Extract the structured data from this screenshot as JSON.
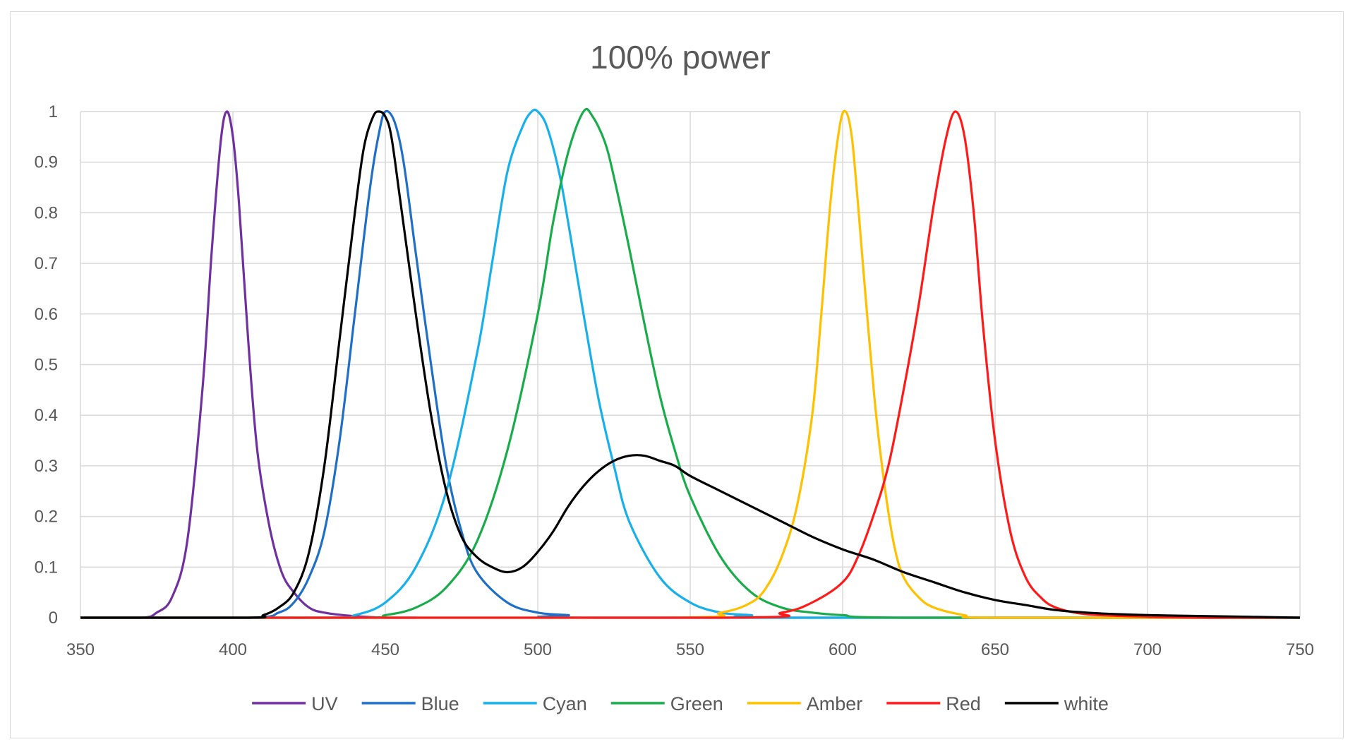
{
  "chart_data": {
    "type": "line",
    "title": "100% power",
    "xlabel": "",
    "ylabel": "",
    "xlim": [
      350,
      750
    ],
    "ylim": [
      0,
      1
    ],
    "x_ticks": [
      "350",
      "400",
      "450",
      "500",
      "550",
      "600",
      "650",
      "700",
      "750"
    ],
    "y_ticks": [
      "0",
      "0.1",
      "0.2",
      "0.3",
      "0.4",
      "0.5",
      "0.6",
      "0.7",
      "0.8",
      "0.9",
      "1"
    ],
    "grid": true,
    "legend_position": "bottom",
    "series": [
      {
        "name": "UV",
        "color": "#7030a0",
        "x": [
          350,
          370,
          375,
          380,
          385,
          390,
          393,
          396,
          398,
          400,
          402,
          405,
          408,
          412,
          416,
          420,
          425,
          430,
          440,
          450,
          460
        ],
        "y": [
          0,
          0,
          0.01,
          0.04,
          0.15,
          0.45,
          0.72,
          0.94,
          1.0,
          0.95,
          0.82,
          0.55,
          0.33,
          0.18,
          0.09,
          0.05,
          0.02,
          0.01,
          0.003,
          0,
          0
        ]
      },
      {
        "name": "Blue",
        "color": "#1f6fc6",
        "x": [
          350,
          405,
          415,
          420,
          425,
          430,
          435,
          440,
          445,
          448,
          450,
          453,
          456,
          460,
          465,
          470,
          475,
          480,
          490,
          500,
          510,
          520,
          750
        ],
        "y": [
          0,
          0,
          0.01,
          0.03,
          0.08,
          0.17,
          0.35,
          0.6,
          0.85,
          0.96,
          1.0,
          0.98,
          0.9,
          0.72,
          0.5,
          0.3,
          0.17,
          0.09,
          0.03,
          0.01,
          0.005,
          0,
          0
        ]
      },
      {
        "name": "Cyan",
        "color": "#17b0ea",
        "x": [
          350,
          430,
          440,
          450,
          460,
          470,
          480,
          485,
          490,
          495,
          498,
          500,
          503,
          507,
          510,
          515,
          520,
          525,
          530,
          540,
          550,
          560,
          570,
          580,
          750
        ],
        "y": [
          0,
          0,
          0.005,
          0.03,
          0.1,
          0.25,
          0.52,
          0.7,
          0.88,
          0.97,
          1.0,
          1.0,
          0.97,
          0.88,
          0.78,
          0.6,
          0.43,
          0.3,
          0.19,
          0.08,
          0.03,
          0.01,
          0.005,
          0,
          0
        ]
      },
      {
        "name": "Green",
        "color": "#1aab4b",
        "x": [
          350,
          440,
          450,
          460,
          470,
          480,
          490,
          500,
          505,
          510,
          515,
          518,
          522,
          525,
          530,
          535,
          540,
          545,
          550,
          560,
          570,
          580,
          590,
          600,
          620,
          750
        ],
        "y": [
          0,
          0,
          0.005,
          0.02,
          0.06,
          0.15,
          0.33,
          0.6,
          0.78,
          0.92,
          1.0,
          0.99,
          0.94,
          0.87,
          0.73,
          0.58,
          0.44,
          0.33,
          0.24,
          0.12,
          0.05,
          0.02,
          0.01,
          0.005,
          0,
          0
        ]
      },
      {
        "name": "Amber",
        "color": "#ffc000",
        "x": [
          350,
          540,
          560,
          570,
          575,
          580,
          585,
          590,
          593,
          596,
          599,
          601,
          603,
          605,
          608,
          611,
          614,
          617,
          620,
          625,
          630,
          640,
          650,
          750
        ],
        "y": [
          0,
          0,
          0.01,
          0.03,
          0.06,
          0.12,
          0.22,
          0.4,
          0.6,
          0.82,
          0.97,
          1.0,
          0.95,
          0.82,
          0.6,
          0.4,
          0.25,
          0.14,
          0.08,
          0.04,
          0.02,
          0.005,
          0,
          0
        ]
      },
      {
        "name": "Red",
        "color": "#ff1a1a",
        "x": [
          350,
          560,
          580,
          590,
          600,
          605,
          610,
          615,
          620,
          625,
          630,
          634,
          637,
          640,
          643,
          646,
          650,
          655,
          660,
          665,
          670,
          680,
          700,
          720,
          750
        ],
        "y": [
          0,
          0,
          0.01,
          0.03,
          0.07,
          0.12,
          0.2,
          0.3,
          0.45,
          0.62,
          0.82,
          0.95,
          1.0,
          0.95,
          0.8,
          0.58,
          0.35,
          0.17,
          0.08,
          0.04,
          0.02,
          0.007,
          0.002,
          0,
          0
        ]
      },
      {
        "name": "white",
        "color": "#000000",
        "x": [
          350,
          405,
          410,
          415,
          420,
          425,
          430,
          435,
          440,
          443,
          446,
          448,
          450,
          452,
          455,
          460,
          465,
          470,
          475,
          480,
          485,
          490,
          495,
          500,
          505,
          510,
          515,
          520,
          525,
          530,
          535,
          540,
          545,
          550,
          560,
          570,
          580,
          590,
          600,
          610,
          620,
          630,
          640,
          650,
          660,
          670,
          680,
          690,
          700,
          720,
          750
        ],
        "y": [
          0,
          0,
          0.005,
          0.02,
          0.05,
          0.13,
          0.3,
          0.55,
          0.8,
          0.93,
          0.99,
          1.0,
          0.99,
          0.95,
          0.82,
          0.6,
          0.4,
          0.25,
          0.16,
          0.12,
          0.1,
          0.09,
          0.1,
          0.13,
          0.17,
          0.22,
          0.26,
          0.29,
          0.31,
          0.32,
          0.32,
          0.31,
          0.3,
          0.28,
          0.25,
          0.22,
          0.19,
          0.16,
          0.135,
          0.115,
          0.09,
          0.07,
          0.05,
          0.035,
          0.025,
          0.015,
          0.01,
          0.007,
          0.005,
          0.003,
          0
        ]
      }
    ]
  }
}
